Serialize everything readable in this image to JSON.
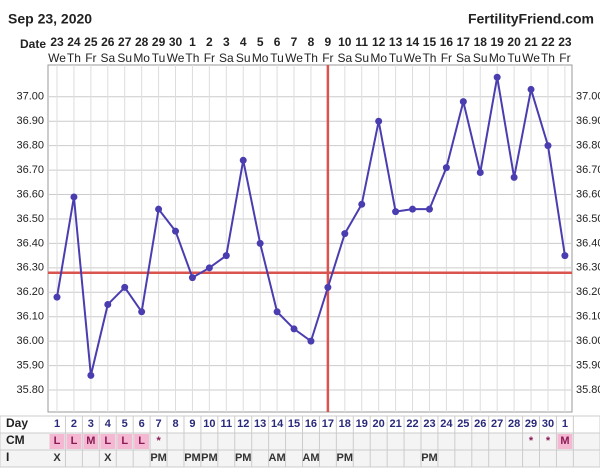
{
  "header": {
    "date": "Sep 23, 2020",
    "site": "FertilityFriend.com"
  },
  "chart_data": {
    "type": "line",
    "date_label": "Date",
    "categories": [
      23,
      24,
      25,
      26,
      27,
      28,
      29,
      30,
      1,
      2,
      3,
      4,
      5,
      6,
      7,
      8,
      9,
      10,
      11,
      12,
      13,
      14,
      15,
      16,
      17,
      18,
      19,
      20,
      21,
      22,
      23
    ],
    "weekdays": [
      "We",
      "Th",
      "Fr",
      "Sa",
      "Su",
      "Mo",
      "Tu",
      "We",
      "Th",
      "Fr",
      "Sa",
      "Su",
      "Mo",
      "Tu",
      "We",
      "Th",
      "Fr",
      "Sa",
      "Su",
      "Mo",
      "Tu",
      "We",
      "Th",
      "Fr",
      "Sa",
      "Su",
      "Mo",
      "Tu",
      "We",
      "Th",
      "Fr"
    ],
    "series": [
      {
        "color": "#4a3db0",
        "values": [
          36.18,
          36.59,
          35.86,
          36.15,
          36.22,
          36.12,
          36.54,
          36.45,
          36.26,
          36.3,
          36.35,
          36.74,
          36.4,
          36.12,
          36.05,
          36.0,
          36.22,
          36.44,
          36.56,
          36.9,
          36.53,
          36.54,
          36.54,
          36.71,
          36.98,
          36.69,
          37.08,
          36.67,
          37.03,
          36.8,
          36.35
        ]
      }
    ],
    "ylim": [
      35.71,
      37.13
    ],
    "yticks": [
      {
        "value": 35.8,
        "label": "35.80"
      },
      {
        "value": 35.9,
        "label": "35.90"
      },
      {
        "value": 36.0,
        "label": "36.00"
      },
      {
        "value": 36.1,
        "label": "36.10"
      },
      {
        "value": 36.2,
        "label": "36.20"
      },
      {
        "value": 36.3,
        "label": "36.30"
      },
      {
        "value": 36.4,
        "label": "36.40"
      },
      {
        "value": 36.5,
        "label": "36.50"
      },
      {
        "value": 36.6,
        "label": "36.60"
      },
      {
        "value": 36.7,
        "label": "36.70"
      },
      {
        "value": 36.8,
        "label": "36.80"
      },
      {
        "value": 36.9,
        "label": "36.90"
      },
      {
        "value": 37.0,
        "label": "37.00"
      }
    ],
    "grid": true,
    "coverline": 36.28,
    "ovulation_day": 17,
    "marker_color": "#d9534f"
  },
  "table": {
    "rows": [
      {
        "label": "Day",
        "cells": [
          1,
          2,
          3,
          4,
          5,
          6,
          7,
          8,
          9,
          10,
          11,
          12,
          13,
          14,
          15,
          16,
          17,
          18,
          19,
          20,
          21,
          22,
          23,
          24,
          25,
          26,
          27,
          28,
          29,
          30,
          1
        ]
      },
      {
        "label": "CM",
        "cells": [
          "L",
          "L",
          "M",
          "L",
          "L",
          "L",
          "*",
          null,
          null,
          null,
          null,
          null,
          null,
          null,
          null,
          null,
          null,
          null,
          null,
          null,
          null,
          null,
          null,
          null,
          null,
          null,
          null,
          null,
          "*",
          "*",
          "M"
        ]
      },
      {
        "label": "I",
        "cells": [
          "X",
          null,
          null,
          "X",
          null,
          null,
          "PM",
          null,
          "PM",
          "PM",
          null,
          "PM",
          null,
          "AM",
          null,
          "AM",
          null,
          "PM",
          null,
          null,
          null,
          null,
          "PM",
          null,
          null,
          null,
          null,
          null,
          null,
          null,
          null
        ]
      }
    ]
  }
}
